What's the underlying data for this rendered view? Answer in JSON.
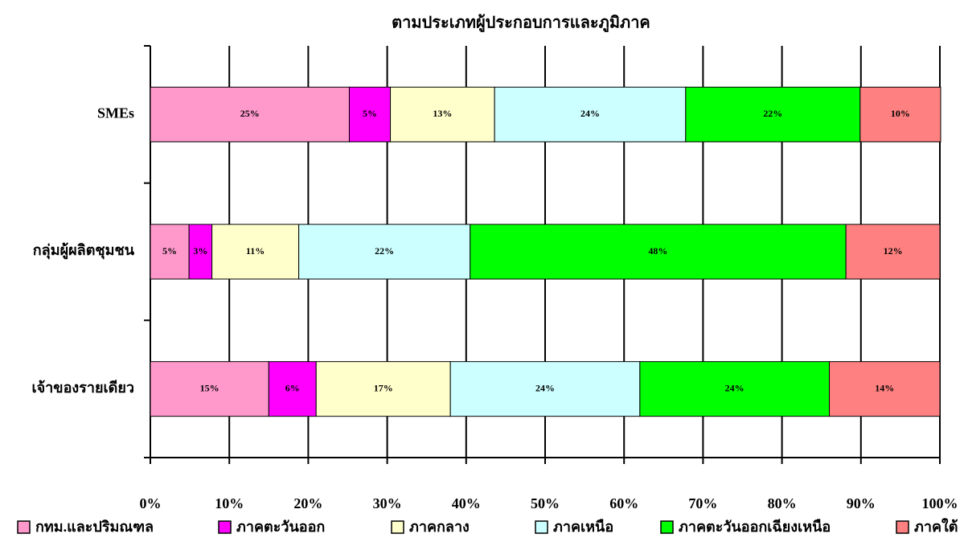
{
  "chart_data": {
    "type": "bar",
    "orientation": "horizontal",
    "stacked": true,
    "title": "ตามประเภทผู้ประกอบการและภูมิภาค",
    "categories": [
      "SMEs",
      "กลุ่มผู้ผลิตชุมชน",
      "เจ้าของรายเดียว"
    ],
    "series": [
      {
        "name": "กทม.และปริมณฑล",
        "color": "#ff99cc",
        "values": [
          25.2,
          4.9,
          15
        ],
        "value_labels": [
          "25%",
          "5%",
          "15%"
        ]
      },
      {
        "name": "ภาคตะวันออก",
        "color": "#ff00ff",
        "values": [
          5.2,
          2.9,
          6
        ],
        "value_labels": [
          "5%",
          "3%",
          "6%"
        ]
      },
      {
        "name": "ภาคกลาง",
        "color": "#ffffcc",
        "values": [
          13.2,
          11.0,
          17
        ],
        "value_labels": [
          "13%",
          "11%",
          "17%"
        ]
      },
      {
        "name": "ภาคเหนือ",
        "color": "#ccffff",
        "values": [
          24.2,
          21.7,
          24
        ],
        "value_labels": [
          "24%",
          "22%",
          "24%"
        ]
      },
      {
        "name": "ภาคตะวันออกเฉียงเหนือ",
        "color": "#00ff00",
        "values": [
          22.1,
          47.6,
          24
        ],
        "value_labels": [
          "22%",
          "48%",
          "24%"
        ]
      },
      {
        "name": "ภาคใต้",
        "color": "#ff8080",
        "values": [
          10.2,
          11.9,
          14
        ],
        "value_labels": [
          "10%",
          "12%",
          "14%"
        ]
      }
    ],
    "xlim": [
      0,
      100
    ],
    "xticks": [
      {
        "value": 0,
        "label": "0%"
      },
      {
        "value": 10,
        "label": "10%"
      },
      {
        "value": 20,
        "label": "20%"
      },
      {
        "value": 30,
        "label": "30%"
      },
      {
        "value": 40,
        "label": "40%"
      },
      {
        "value": 50,
        "label": "50%"
      },
      {
        "value": 60,
        "label": "60%"
      },
      {
        "value": 70,
        "label": "70%"
      },
      {
        "value": 80,
        "label": "80%"
      },
      {
        "value": 90,
        "label": "90%"
      },
      {
        "value": 100,
        "label": "100%"
      }
    ],
    "grid": true,
    "legend": "bottom"
  }
}
